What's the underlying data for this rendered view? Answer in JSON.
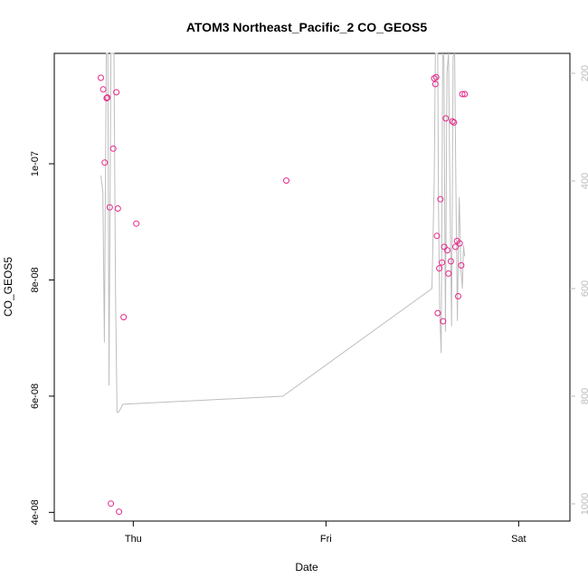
{
  "chart_data": {
    "type": "scatter",
    "title": "ATOM3 Northeast_Pacific_2 CO_GEOS5",
    "xlabel": "Date",
    "ylabel": "CO_GEOS5",
    "x_tick_labels": [
      "Thu",
      "Fri",
      "Sat"
    ],
    "y_tick_labels": [
      "4e-08",
      "6e-08",
      "8e-08",
      "1e-07"
    ],
    "y_right_tick_labels": [
      "200",
      "400",
      "600",
      "800",
      "1000"
    ],
    "xlim": [
      -0.205,
      1.133
    ],
    "ylim": [
      3.85e-08,
      1.19e-07
    ],
    "y_ticks": [
      4e-08,
      6e-08,
      8e-08,
      1e-07
    ],
    "y_right_ticks": [
      200,
      400,
      600,
      800,
      1000
    ],
    "y_right_lim": [
      1032,
      163
    ],
    "x_ticks": [
      0,
      0.5,
      1
    ],
    "point_color": "#e7298a",
    "line_color": "#bebebe",
    "series": [
      {
        "type": "points",
        "x": [
          -0.084,
          -0.078,
          -0.074,
          -0.069,
          -0.067,
          -0.061,
          -0.058,
          -0.052,
          -0.044,
          -0.04,
          -0.037,
          -0.025,
          0.008,
          0.397,
          0.781,
          0.784,
          0.786,
          0.788,
          0.79,
          0.794,
          0.797,
          0.801,
          0.804,
          0.807,
          0.811,
          0.815,
          0.818,
          0.824,
          0.828,
          0.832,
          0.836,
          0.84,
          0.843,
          0.847,
          0.851,
          0.854,
          0.86
        ],
        "y": [
          1.148e-07,
          1.128e-07,
          1.002e-07,
          1.113e-07,
          1.114e-07,
          9.25e-08,
          4.15e-08,
          1.026e-07,
          1.123e-07,
          9.23e-08,
          4.01e-08,
          7.36e-08,
          8.97e-08,
          9.71e-08,
          1.147e-07,
          1.137e-07,
          1.149e-07,
          8.76e-08,
          7.43e-08,
          8.2e-08,
          9.39e-08,
          8.3e-08,
          7.29e-08,
          8.57e-08,
          1.078e-07,
          8.51e-08,
          8.11e-08,
          8.32e-08,
          1.073e-07,
          1.071e-07,
          8.57e-08,
          8.67e-08,
          7.72e-08,
          8.63e-08,
          8.25e-08,
          1.12e-07,
          1.12e-07
        ],
        "note_hidden_last_two": false
      },
      {
        "type": "line",
        "x": [
          -0.084,
          -0.079,
          -0.075,
          -0.07,
          -0.066,
          -0.063,
          -0.058,
          -0.054,
          -0.05,
          -0.046,
          -0.042,
          -0.038,
          -0.027,
          0.388,
          0.775,
          0.781,
          0.784,
          0.787,
          0.79,
          0.792,
          0.795,
          0.799,
          0.803,
          0.806,
          0.81,
          0.814,
          0.818,
          0.822,
          0.826,
          0.83,
          0.834,
          0.837,
          0.841,
          0.844,
          0.846,
          0.85,
          0.854,
          0.857,
          0.86
        ],
        "y_right": [
          390,
          420,
          700,
          160,
          160,
          780,
          160,
          160,
          160,
          610,
          830,
          830,
          815,
          800,
          600,
          400,
          160,
          160,
          160,
          440,
          640,
          720,
          160,
          170,
          680,
          200,
          160,
          440,
          670,
          170,
          160,
          400,
          660,
          500,
          430,
          560,
          600,
          520,
          540
        ]
      }
    ]
  }
}
